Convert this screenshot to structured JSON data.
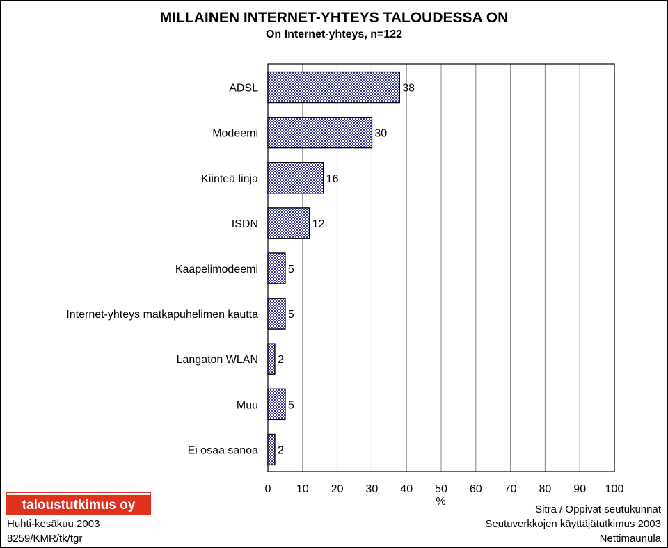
{
  "title": "MILLAINEN INTERNET-YHTEYS TALOUDESSA ON",
  "subtitle": "On Internet-yhteys, n=122",
  "chart_data": {
    "type": "bar",
    "orientation": "horizontal",
    "categories": [
      "ADSL",
      "Modeemi",
      "Kiinteä linja",
      "ISDN",
      "Kaapelimodeemi",
      "Internet-yhteys matkapuhelimen kautta",
      "Langaton WLAN",
      "Muu",
      "Ei osaa sanoa"
    ],
    "values": [
      38,
      30,
      16,
      12,
      5,
      5,
      2,
      5,
      2
    ],
    "value_labels": [
      "38",
      "30",
      "16",
      "12",
      "5",
      "5",
      "2",
      "5",
      "2"
    ],
    "xlabel": "%",
    "xlim": [
      0,
      100
    ],
    "xticks": [
      "0",
      "10",
      "20",
      "30",
      "40",
      "50",
      "60",
      "70",
      "80",
      "90",
      "100"
    ],
    "grid": "vertical",
    "bar_fill": "checkered",
    "bar_color": "#3a3a9a"
  },
  "logo_text": "taloustutkimus oy",
  "logo_color": "#e0301e",
  "footer_left": [
    "Huhti-kesäkuu 2003",
    "8259/KMR/tk/tgr"
  ],
  "footer_right": [
    "Sitra / Oppivat seutukunnat",
    "Seutuverkkojen käyttäjätutkimus 2003",
    "Nettimaunula"
  ]
}
